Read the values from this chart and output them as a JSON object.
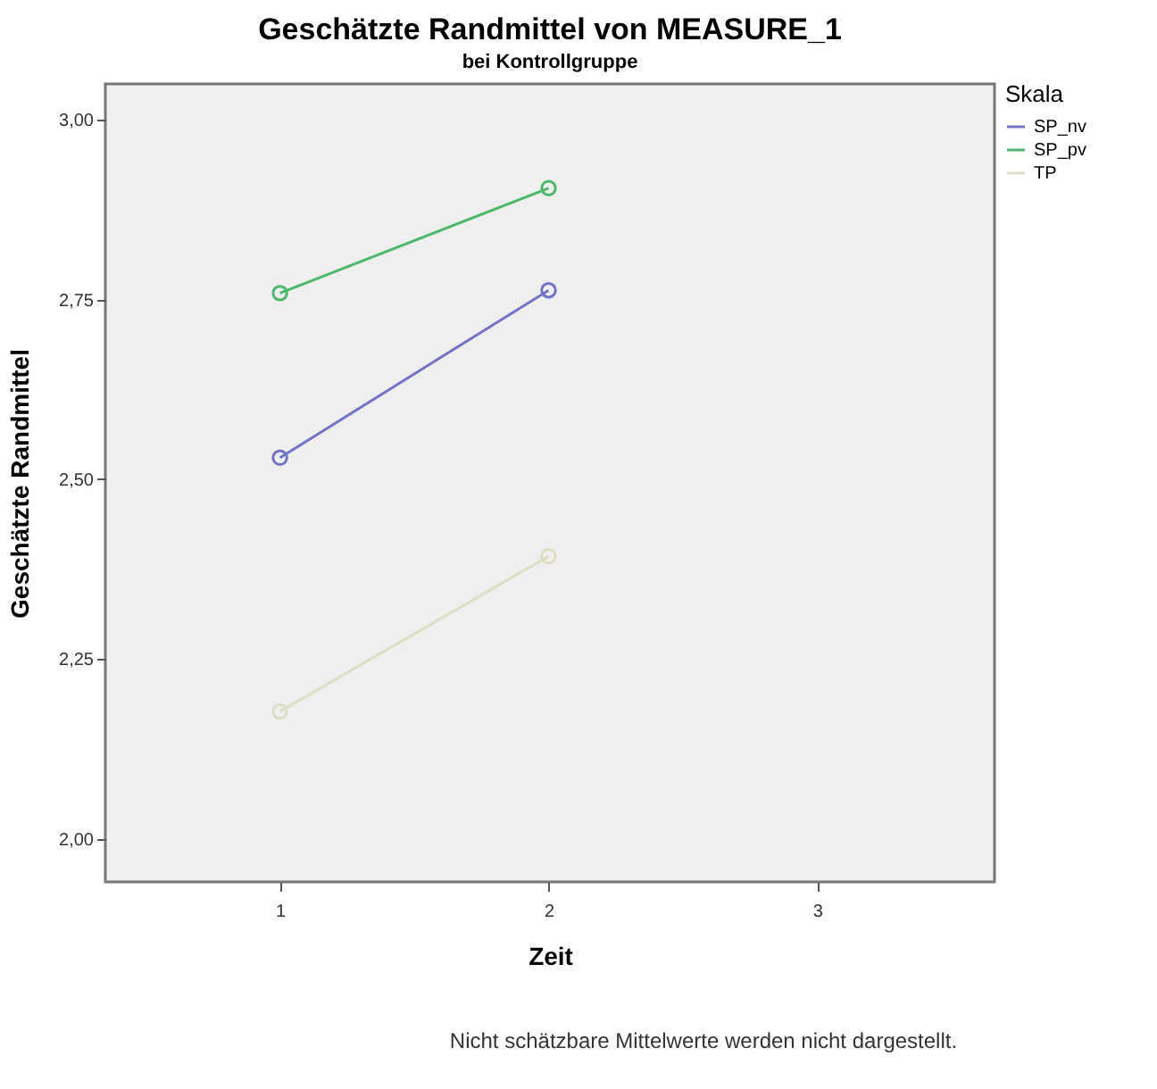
{
  "chart_data": {
    "type": "line",
    "title": "Geschätzte Randmittel von MEASURE_1",
    "subtitle": "bei Kontrollgruppe",
    "xlabel": "Zeit",
    "ylabel": "Geschätzte Randmittel",
    "legend_title": "Skala",
    "x": [
      1,
      2
    ],
    "series": [
      {
        "name": "SP_nv",
        "color": "#7373c4",
        "values": [
          2.53,
          2.763
        ]
      },
      {
        "name": "SP_pv",
        "color": "#4cb86a",
        "values": [
          2.759,
          2.905
        ]
      },
      {
        "name": "TP",
        "color": "#deddc4",
        "values": [
          2.177,
          2.393
        ]
      }
    ],
    "xlim": [
      0.35,
      3.66
    ],
    "xticks": [
      1,
      2,
      3
    ],
    "ylim": [
      1.94,
      3.05
    ],
    "yticks": [
      {
        "value": 2,
        "label": "2,00"
      },
      {
        "value": 2.25,
        "label": "2,25"
      },
      {
        "value": 2.5,
        "label": "2,50"
      },
      {
        "value": 2.75,
        "label": "2,75"
      },
      {
        "value": 3,
        "label": "3,00"
      }
    ],
    "grid": false,
    "legend": "top right",
    "marker": "circle",
    "line_style": "solid",
    "annotations": [
      "Nicht schätzbare Mittelwerte werden nicht dargestellt."
    ]
  }
}
